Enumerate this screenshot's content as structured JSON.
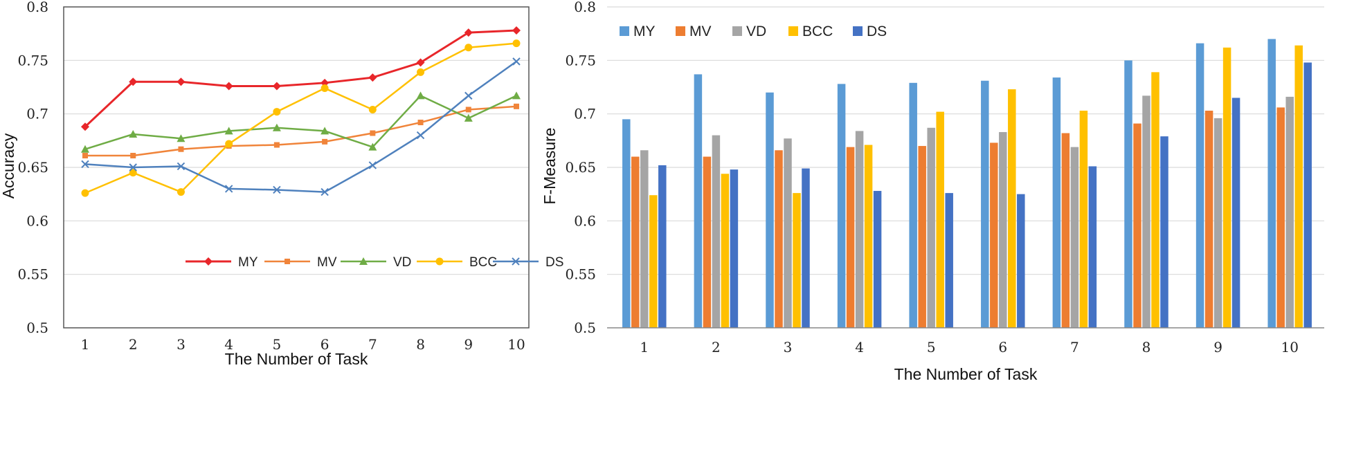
{
  "chart_data": [
    {
      "type": "line",
      "xlabel": "The Number of Task",
      "ylabel": "Accuracy",
      "categories": [
        "1",
        "2",
        "3",
        "4",
        "5",
        "6",
        "7",
        "8",
        "9",
        "10"
      ],
      "ylim": [
        0.5,
        0.8
      ],
      "yticks": [
        "0.5",
        "0.55",
        "0.6",
        "0.65",
        "0.7",
        "0.75",
        "0.8"
      ],
      "grid": true,
      "legend_position": "bottom-right",
      "series": [
        {
          "name": "MY",
          "color": "#e8262a",
          "marker": "diamond",
          "values": [
            0.688,
            0.73,
            0.73,
            0.726,
            0.726,
            0.729,
            0.734,
            0.748,
            0.776,
            0.778
          ]
        },
        {
          "name": "MV",
          "color": "#f0843a",
          "marker": "square",
          "values": [
            0.661,
            0.661,
            0.667,
            0.67,
            0.671,
            0.674,
            0.682,
            0.692,
            0.704,
            0.707
          ]
        },
        {
          "name": "VD",
          "color": "#6fac45",
          "marker": "triangle",
          "values": [
            0.667,
            0.681,
            0.677,
            0.684,
            0.687,
            0.684,
            0.669,
            0.717,
            0.696,
            0.717
          ]
        },
        {
          "name": "BCC",
          "color": "#ffc000",
          "marker": "circle",
          "values": [
            0.626,
            0.645,
            0.627,
            0.672,
            0.702,
            0.724,
            0.704,
            0.739,
            0.762,
            0.766
          ]
        },
        {
          "name": "DS",
          "color": "#4f81bd",
          "marker": "x",
          "values": [
            0.653,
            0.65,
            0.651,
            0.63,
            0.629,
            0.627,
            0.652,
            0.68,
            0.717,
            0.749
          ]
        }
      ]
    },
    {
      "type": "bar",
      "xlabel": "The Number of Task",
      "ylabel": "F-Measure",
      "categories": [
        "1",
        "2",
        "3",
        "4",
        "5",
        "6",
        "7",
        "8",
        "9",
        "10"
      ],
      "ylim": [
        0.5,
        0.8
      ],
      "yticks": [
        "0.5",
        "0.55",
        "0.6",
        "0.65",
        "0.7",
        "0.75",
        "0.8"
      ],
      "grid": true,
      "legend_position": "top-left",
      "series": [
        {
          "name": "MY",
          "color": "#5b9bd5",
          "values": [
            0.695,
            0.737,
            0.72,
            0.728,
            0.729,
            0.731,
            0.734,
            0.75,
            0.766,
            0.77
          ]
        },
        {
          "name": "MV",
          "color": "#ed7d31",
          "values": [
            0.66,
            0.66,
            0.666,
            0.669,
            0.67,
            0.673,
            0.682,
            0.691,
            0.703,
            0.706
          ]
        },
        {
          "name": "VD",
          "color": "#a5a5a5",
          "values": [
            0.666,
            0.68,
            0.677,
            0.684,
            0.687,
            0.683,
            0.669,
            0.717,
            0.696,
            0.716
          ]
        },
        {
          "name": "BCC",
          "color": "#ffc000",
          "values": [
            0.624,
            0.644,
            0.626,
            0.671,
            0.702,
            0.723,
            0.703,
            0.739,
            0.762,
            0.764
          ]
        },
        {
          "name": "DS",
          "color": "#4472c4",
          "values": [
            0.652,
            0.648,
            0.649,
            0.628,
            0.626,
            0.625,
            0.651,
            0.679,
            0.715,
            0.748
          ]
        }
      ]
    }
  ]
}
